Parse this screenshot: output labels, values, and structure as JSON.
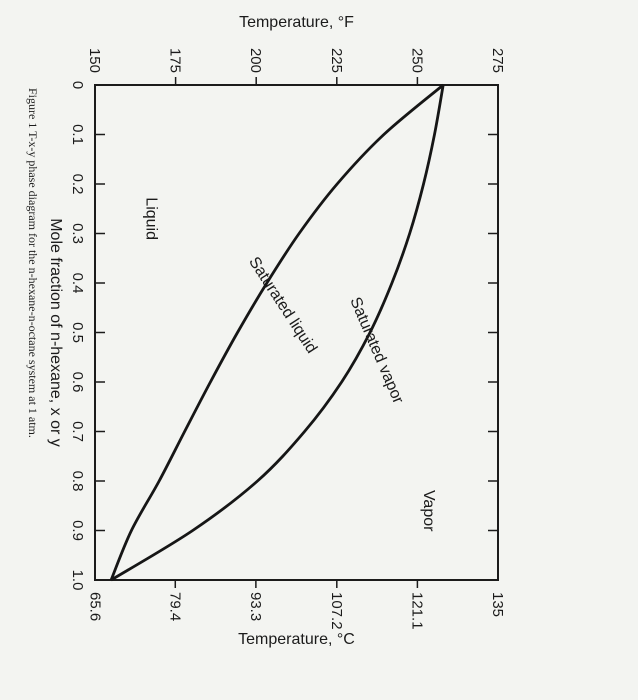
{
  "chart_data": {
    "type": "line",
    "caption": "Figure 1 T-x-y phase diagram for the n-hexane-n-octane system at 1 atm.",
    "xlabel": "Mole fraction of n-hexane, x or y",
    "ylabel_left": "Temperature, °F",
    "ylabel_right": "Temperature, °C",
    "xlim": [
      0,
      1
    ],
    "ylim": [
      150,
      275
    ],
    "x_ticks": [
      "0",
      "0.1",
      "0.2",
      "0.3",
      "0.4",
      "0.5",
      "0.6",
      "0.7",
      "0.8",
      "0.9",
      "1.0"
    ],
    "y_ticks_left": [
      {
        "value": 150,
        "label": "150"
      },
      {
        "value": 175,
        "label": "175"
      },
      {
        "value": 200,
        "label": "200"
      },
      {
        "value": 225,
        "label": "225"
      },
      {
        "value": 250,
        "label": "250"
      },
      {
        "value": 275,
        "label": "275"
      }
    ],
    "y_ticks_right": [
      {
        "value": 150.1,
        "label": "65.6"
      },
      {
        "value": 174.9,
        "label": "79.4"
      },
      {
        "value": 199.9,
        "label": "93.3"
      },
      {
        "value": 225.0,
        "label": "107.2"
      },
      {
        "value": 250.0,
        "label": "121.1"
      },
      {
        "value": 275.0,
        "label": "135"
      }
    ],
    "series": [
      {
        "name": "Saturated liquid",
        "x": [
          0,
          0.1,
          0.2,
          0.3,
          0.4,
          0.5,
          0.6,
          0.7,
          0.8,
          0.9,
          1.0
        ],
        "y": [
          258,
          239.6,
          225.1,
          213.3,
          203.3,
          194.2,
          185.8,
          177.8,
          169.9,
          161.3,
          155
        ]
      },
      {
        "name": "Saturated vapor",
        "x": [
          0,
          0.1,
          0.2,
          0.3,
          0.4,
          0.5,
          0.6,
          0.7,
          0.8,
          0.9,
          1.0
        ],
        "y": [
          258,
          255.3,
          251.9,
          247.6,
          242.1,
          235.3,
          226.5,
          215,
          200.4,
          180.3,
          155
        ]
      }
    ],
    "annotations": [
      {
        "text": "Liquid",
        "x": 0.27,
        "y": 166
      },
      {
        "text": "Vapor",
        "x": 0.86,
        "y": 252
      },
      {
        "text": "Saturated liquid",
        "x": 0.45,
        "y": 207
      },
      {
        "text": "Saturated vapor",
        "x": 0.54,
        "y": 236
      }
    ],
    "grid": false
  }
}
